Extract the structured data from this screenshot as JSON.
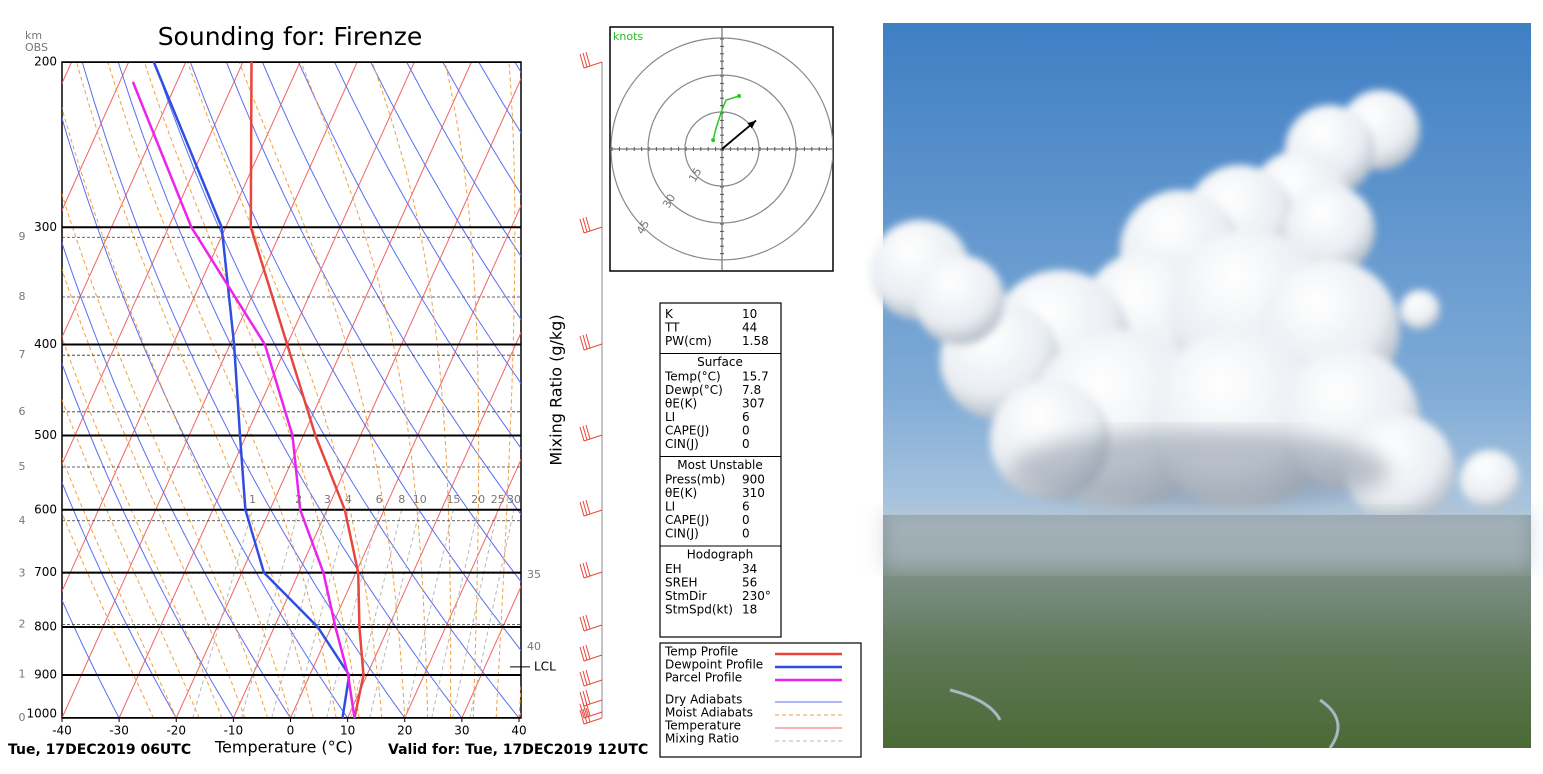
{
  "chart_data": {
    "type": "skewt",
    "title": "Sounding for: Firenze",
    "x_label": "Temperature (°C)",
    "mixing_ratio_label": "Mixing Ratio (g/kg)",
    "y2_label": "km",
    "obs_label": "OBS",
    "xlim": [
      -40,
      40
    ],
    "xticks": [
      -40,
      -30,
      -20,
      -10,
      0,
      10,
      20,
      30,
      40
    ],
    "ylim": [
      1000,
      200
    ],
    "yticks": [
      1000,
      900,
      800,
      700,
      600,
      500,
      400,
      300,
      200
    ],
    "log_scale": true,
    "grid": true,
    "y2ticks": [
      0,
      1,
      2,
      3,
      4,
      5,
      6,
      7,
      8,
      9
    ],
    "mixing_ratio_ticks": [
      1,
      2,
      3,
      4,
      6,
      8,
      10,
      15,
      20,
      25,
      30
    ],
    "mixing_ratio_edge_ticks": [
      35,
      40
    ],
    "lcl_label": "LCL",
    "lcl_pressure": 882,
    "series": [
      {
        "name": "Temp Profile",
        "color": "#e8453c",
        "pressure": [
          1000,
          900,
          800,
          700,
          600,
          500,
          400,
          300,
          200
        ],
        "values": [
          11.2,
          9.4,
          4.9,
          0.4,
          -6.9,
          -17.9,
          -30,
          -45.6,
          -58.5
        ]
      },
      {
        "name": "Dewpoint Profile",
        "color": "#2f4fe0",
        "pressure": [
          1000,
          900,
          800,
          700,
          600,
          500,
          400,
          300,
          200
        ],
        "values": [
          9.1,
          6.9,
          -2.4,
          -16.1,
          -24.3,
          -31.1,
          -39.3,
          -50.7,
          -75.6
        ]
      },
      {
        "name": "Parcel Profile",
        "color": "#ee22ee",
        "pressure": [
          1000,
          900,
          800,
          700,
          600,
          500,
          400,
          300,
          210
        ],
        "values": [
          11.2,
          6.7,
          0.7,
          -5.7,
          -14.7,
          -21.9,
          -33.9,
          -56.0,
          -77.7
        ]
      }
    ],
    "background": [
      {
        "name": "Dry Adiabats",
        "color": "#5a6ef2",
        "dashed": false
      },
      {
        "name": "Moist Adiabats",
        "color": "#f0a040",
        "dashed": true
      },
      {
        "name": "Temperature",
        "color": "#f06464",
        "dashed": false
      },
      {
        "name": "Mixing Ratio",
        "color": "#b8b8b8",
        "dashed": true
      }
    ],
    "init_label": "Tue, 17DEC2019 06UTC",
    "valid_label": "Valid for: Tue, 17DEC2019 12UTC"
  },
  "hodograph": {
    "unit": "knots",
    "rings": [
      15,
      30,
      45
    ],
    "color": "#22cc22",
    "u": [
      -3.6,
      -2.4,
      0,
      1.6,
      6.9
    ],
    "v": [
      3.6,
      8.5,
      15.8,
      19.8,
      21.5
    ]
  },
  "indices": {
    "sections": [
      {
        "rows": [
          [
            "K",
            "10"
          ],
          [
            "TT",
            "44"
          ],
          [
            "PW(cm)",
            "1.58"
          ]
        ]
      },
      {
        "title": "Surface",
        "rows": [
          [
            "Temp(°C)",
            "15.7"
          ],
          [
            "Dewp(°C)",
            "7.8"
          ],
          [
            "θE(K)",
            "307"
          ],
          [
            "LI",
            "6"
          ],
          [
            "CAPE(J)",
            "0"
          ],
          [
            "CIN(J)",
            "0"
          ]
        ]
      },
      {
        "title": "Most Unstable",
        "rows": [
          [
            "Press(mb)",
            "900"
          ],
          [
            "θE(K)",
            "310"
          ],
          [
            "LI",
            "6"
          ],
          [
            "CAPE(J)",
            "0"
          ],
          [
            "CIN(J)",
            "0"
          ]
        ]
      },
      {
        "title": "Hodograph",
        "rows": [
          [
            "EH",
            "34"
          ],
          [
            "SREH",
            "56"
          ],
          [
            "StmDir",
            "230°"
          ],
          [
            "StmSpd(kt)",
            "18"
          ]
        ]
      }
    ]
  }
}
